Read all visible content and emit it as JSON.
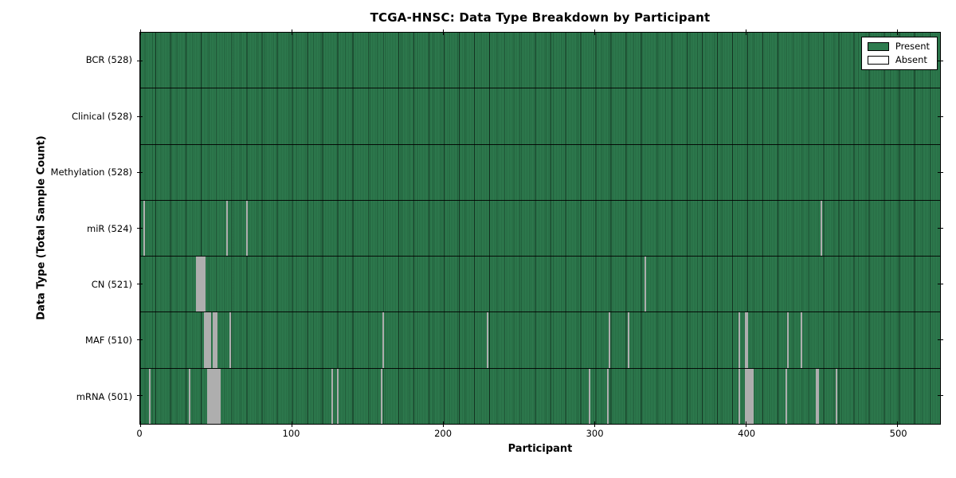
{
  "chart_data": {
    "type": "heatmap",
    "title": "TCGA-HNSC: Data Type Breakdown by Participant",
    "xlabel": "Participant",
    "ylabel": "Data Type (Total Sample Count)",
    "x_ticks": [
      0,
      100,
      200,
      300,
      400,
      500
    ],
    "x_range": [
      0,
      528
    ],
    "total_participants": 528,
    "grid": false,
    "legend_position": "upper right",
    "colors": {
      "present": "#2e7c4f",
      "absent": "#ffffff",
      "plot_border": "#000000"
    },
    "legend": [
      {
        "label": "Present",
        "color": "#2e7c4f"
      },
      {
        "label": "Absent",
        "color": "#ffffff"
      }
    ],
    "rows": [
      {
        "name": "BCR",
        "label": "BCR (528)",
        "present_count": 528,
        "absent_participants": []
      },
      {
        "name": "Clinical",
        "label": "Clinical (528)",
        "present_count": 528,
        "absent_participants": []
      },
      {
        "name": "Methylation",
        "label": "Methylation (528)",
        "present_count": 528,
        "absent_participants": []
      },
      {
        "name": "miR",
        "label": "miR (524)",
        "present_count": 524,
        "absent_participants": [
          2,
          57,
          70,
          449
        ]
      },
      {
        "name": "CN",
        "label": "CN (521)",
        "present_count": 521,
        "absent_participants": [
          37,
          38,
          39,
          40,
          41,
          42,
          333
        ]
      },
      {
        "name": "MAF",
        "label": "MAF (510)",
        "present_count": 510,
        "absent_participants": [
          42,
          43,
          44,
          45,
          46,
          48,
          49,
          50,
          59,
          160,
          229,
          309,
          322,
          395,
          399,
          400,
          427,
          436
        ]
      },
      {
        "name": "mRNA",
        "label": "mRNA (501)",
        "present_count": 501,
        "absent_participants": [
          6,
          32,
          44,
          45,
          46,
          47,
          48,
          49,
          50,
          51,
          52,
          126,
          130,
          159,
          296,
          308,
          395,
          399,
          400,
          401,
          402,
          403,
          404,
          426,
          446,
          447,
          459
        ]
      }
    ]
  }
}
